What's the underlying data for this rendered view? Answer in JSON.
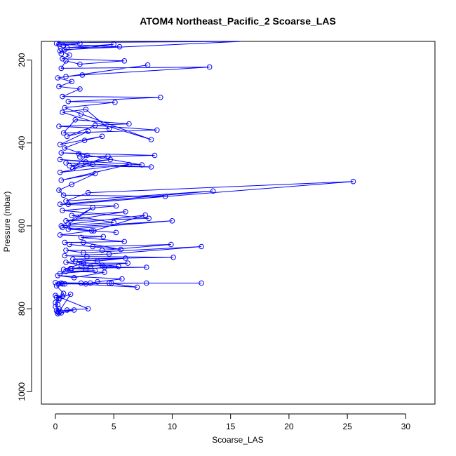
{
  "chart_data": {
    "type": "scatter",
    "title": "ATOM4 Northeast_Pacific_2 Scoarse_LAS",
    "xlabel": "Scoarse_LAS",
    "ylabel": "Pressure (mbar)",
    "xlim": [
      -1.2,
      32.5
    ],
    "ylim": [
      1030,
      155
    ],
    "y_reversed": true,
    "grid": false,
    "color": "#0000ff",
    "marker": "open-circle",
    "connected": true,
    "x_ticks": [
      0,
      5,
      10,
      15,
      20,
      25,
      30
    ],
    "y_ticks": [
      200,
      400,
      600,
      800,
      1000
    ],
    "x_tick_labels": [
      "0",
      "5",
      "10",
      "15",
      "20",
      "25",
      "30"
    ],
    "y_tick_labels": [
      "200",
      "400",
      "600",
      "800",
      "1000"
    ],
    "series": [
      {
        "points": [
          [
            0.3,
            810
          ],
          [
            0.2,
            808
          ],
          [
            0.1,
            805
          ],
          [
            0.3,
            800
          ],
          [
            0.0,
            795
          ],
          [
            0.2,
            790
          ],
          [
            0.0,
            785
          ],
          [
            0.3,
            778
          ],
          [
            0.1,
            772
          ],
          [
            0.6,
            770
          ],
          [
            0.0,
            768
          ],
          [
            2.8,
            800
          ],
          [
            1.0,
            803
          ],
          [
            0.4,
            806
          ],
          [
            1.6,
            803
          ],
          [
            0.5,
            810
          ],
          [
            0.2,
            812
          ],
          [
            1.3,
            765
          ],
          [
            0.3,
            775
          ],
          [
            0.7,
            763
          ],
          [
            0.1,
            745
          ],
          [
            0.6,
            740
          ],
          [
            0.0,
            737
          ],
          [
            2.2,
            738
          ],
          [
            4.6,
            738
          ],
          [
            7.0,
            748
          ],
          [
            0.5,
            738
          ],
          [
            12.5,
            738
          ],
          [
            3.0,
            738
          ],
          [
            0.8,
            740
          ],
          [
            4.8,
            738
          ],
          [
            7.8,
            738
          ],
          [
            0.3,
            740
          ],
          [
            2.6,
            740
          ],
          [
            3.6,
            735
          ],
          [
            5.7,
            728
          ],
          [
            0.2,
            720
          ],
          [
            1.6,
            725
          ],
          [
            4.2,
            712
          ],
          [
            0.9,
            710
          ],
          [
            3.4,
            708
          ],
          [
            0.4,
            715
          ],
          [
            1.4,
            703
          ],
          [
            2.6,
            705
          ],
          [
            4.2,
            700
          ],
          [
            7.8,
            700
          ],
          [
            1.3,
            703
          ],
          [
            4.0,
            695
          ],
          [
            6.2,
            690
          ],
          [
            2.4,
            690
          ],
          [
            0.7,
            705
          ],
          [
            3.0,
            698
          ],
          [
            1.7,
            686
          ],
          [
            5.4,
            698
          ],
          [
            2.2,
            695
          ],
          [
            0.9,
            688
          ],
          [
            6.0,
            678
          ],
          [
            3.6,
            685
          ],
          [
            1.5,
            680
          ],
          [
            10.1,
            676
          ],
          [
            2.7,
            674
          ],
          [
            0.8,
            672
          ],
          [
            4.6,
            668
          ],
          [
            12.5,
            650
          ],
          [
            2.4,
            665
          ],
          [
            0.9,
            659
          ],
          [
            4.0,
            659
          ],
          [
            9.9,
            645
          ],
          [
            3.2,
            650
          ],
          [
            1.2,
            645
          ],
          [
            5.6,
            657
          ],
          [
            2.4,
            640
          ],
          [
            0.8,
            640
          ],
          [
            5.9,
            638
          ],
          [
            2.2,
            628
          ],
          [
            4.1,
            626
          ],
          [
            0.4,
            622
          ],
          [
            3.1,
            612
          ],
          [
            5.2,
            616
          ],
          [
            1.1,
            608
          ],
          [
            10.0,
            588
          ],
          [
            0.6,
            604
          ],
          [
            3.3,
            612
          ],
          [
            7.7,
            574
          ],
          [
            1.1,
            596
          ],
          [
            3.2,
            556
          ],
          [
            0.5,
            600
          ],
          [
            5.0,
            592
          ],
          [
            1.4,
            575
          ],
          [
            6.0,
            566
          ],
          [
            0.9,
            588
          ],
          [
            8.0,
            582
          ],
          [
            0.6,
            563
          ],
          [
            5.2,
            552
          ],
          [
            0.4,
            548
          ],
          [
            13.5,
            516
          ],
          [
            0.9,
            540
          ],
          [
            2.8,
            520
          ],
          [
            25.5,
            493
          ],
          [
            1.1,
            548
          ],
          [
            9.4,
            529
          ],
          [
            0.7,
            526
          ],
          [
            0.3,
            514
          ],
          [
            1.4,
            500
          ],
          [
            3.4,
            474
          ],
          [
            0.5,
            490
          ],
          [
            6.3,
            452
          ],
          [
            0.4,
            471
          ],
          [
            3.2,
            452
          ],
          [
            0.9,
            448
          ],
          [
            8.2,
            458
          ],
          [
            1.2,
            455
          ],
          [
            4.7,
            440
          ],
          [
            2.6,
            446
          ],
          [
            0.4,
            440
          ],
          [
            7.4,
            453
          ],
          [
            2.0,
            426
          ],
          [
            0.5,
            424
          ],
          [
            8.5,
            430
          ],
          [
            2.1,
            434
          ],
          [
            4.5,
            432
          ],
          [
            1.5,
            462
          ],
          [
            2.7,
            430
          ],
          [
            0.8,
            412
          ],
          [
            2.5,
            394
          ],
          [
            4.0,
            384
          ],
          [
            0.4,
            404
          ],
          [
            2.8,
            372
          ],
          [
            1.0,
            384
          ],
          [
            3.4,
            358
          ],
          [
            8.7,
            369
          ],
          [
            0.7,
            376
          ],
          [
            1.7,
            344
          ],
          [
            6.3,
            354
          ],
          [
            0.3,
            360
          ],
          [
            4.6,
            366
          ],
          [
            2.6,
            319
          ],
          [
            0.6,
            326
          ],
          [
            8.2,
            392
          ],
          [
            2.2,
            330
          ],
          [
            0.8,
            315
          ],
          [
            5.1,
            302
          ],
          [
            1.1,
            300
          ],
          [
            9.0,
            290
          ],
          [
            0.6,
            288
          ],
          [
            2.1,
            270
          ],
          [
            0.3,
            264
          ],
          [
            1.4,
            252
          ],
          [
            0.2,
            243
          ],
          [
            7.9,
            212
          ],
          [
            0.9,
            240
          ],
          [
            2.3,
            236
          ],
          [
            13.2,
            217
          ],
          [
            0.5,
            220
          ],
          [
            0.9,
            202
          ],
          [
            2.1,
            210
          ],
          [
            5.9,
            202
          ],
          [
            0.6,
            197
          ],
          [
            1.2,
            188
          ],
          [
            0.4,
            178
          ],
          [
            5.0,
            162
          ],
          [
            1.0,
            170
          ],
          [
            5.5,
            168
          ],
          [
            0.3,
            162
          ],
          [
            2.1,
            160
          ],
          [
            0.7,
            165
          ],
          [
            0.2,
            158
          ],
          [
            16.0,
            155
          ],
          [
            0.8,
            175
          ],
          [
            0.1,
            160
          ],
          [
            0.5,
            185
          ]
        ]
      }
    ]
  }
}
